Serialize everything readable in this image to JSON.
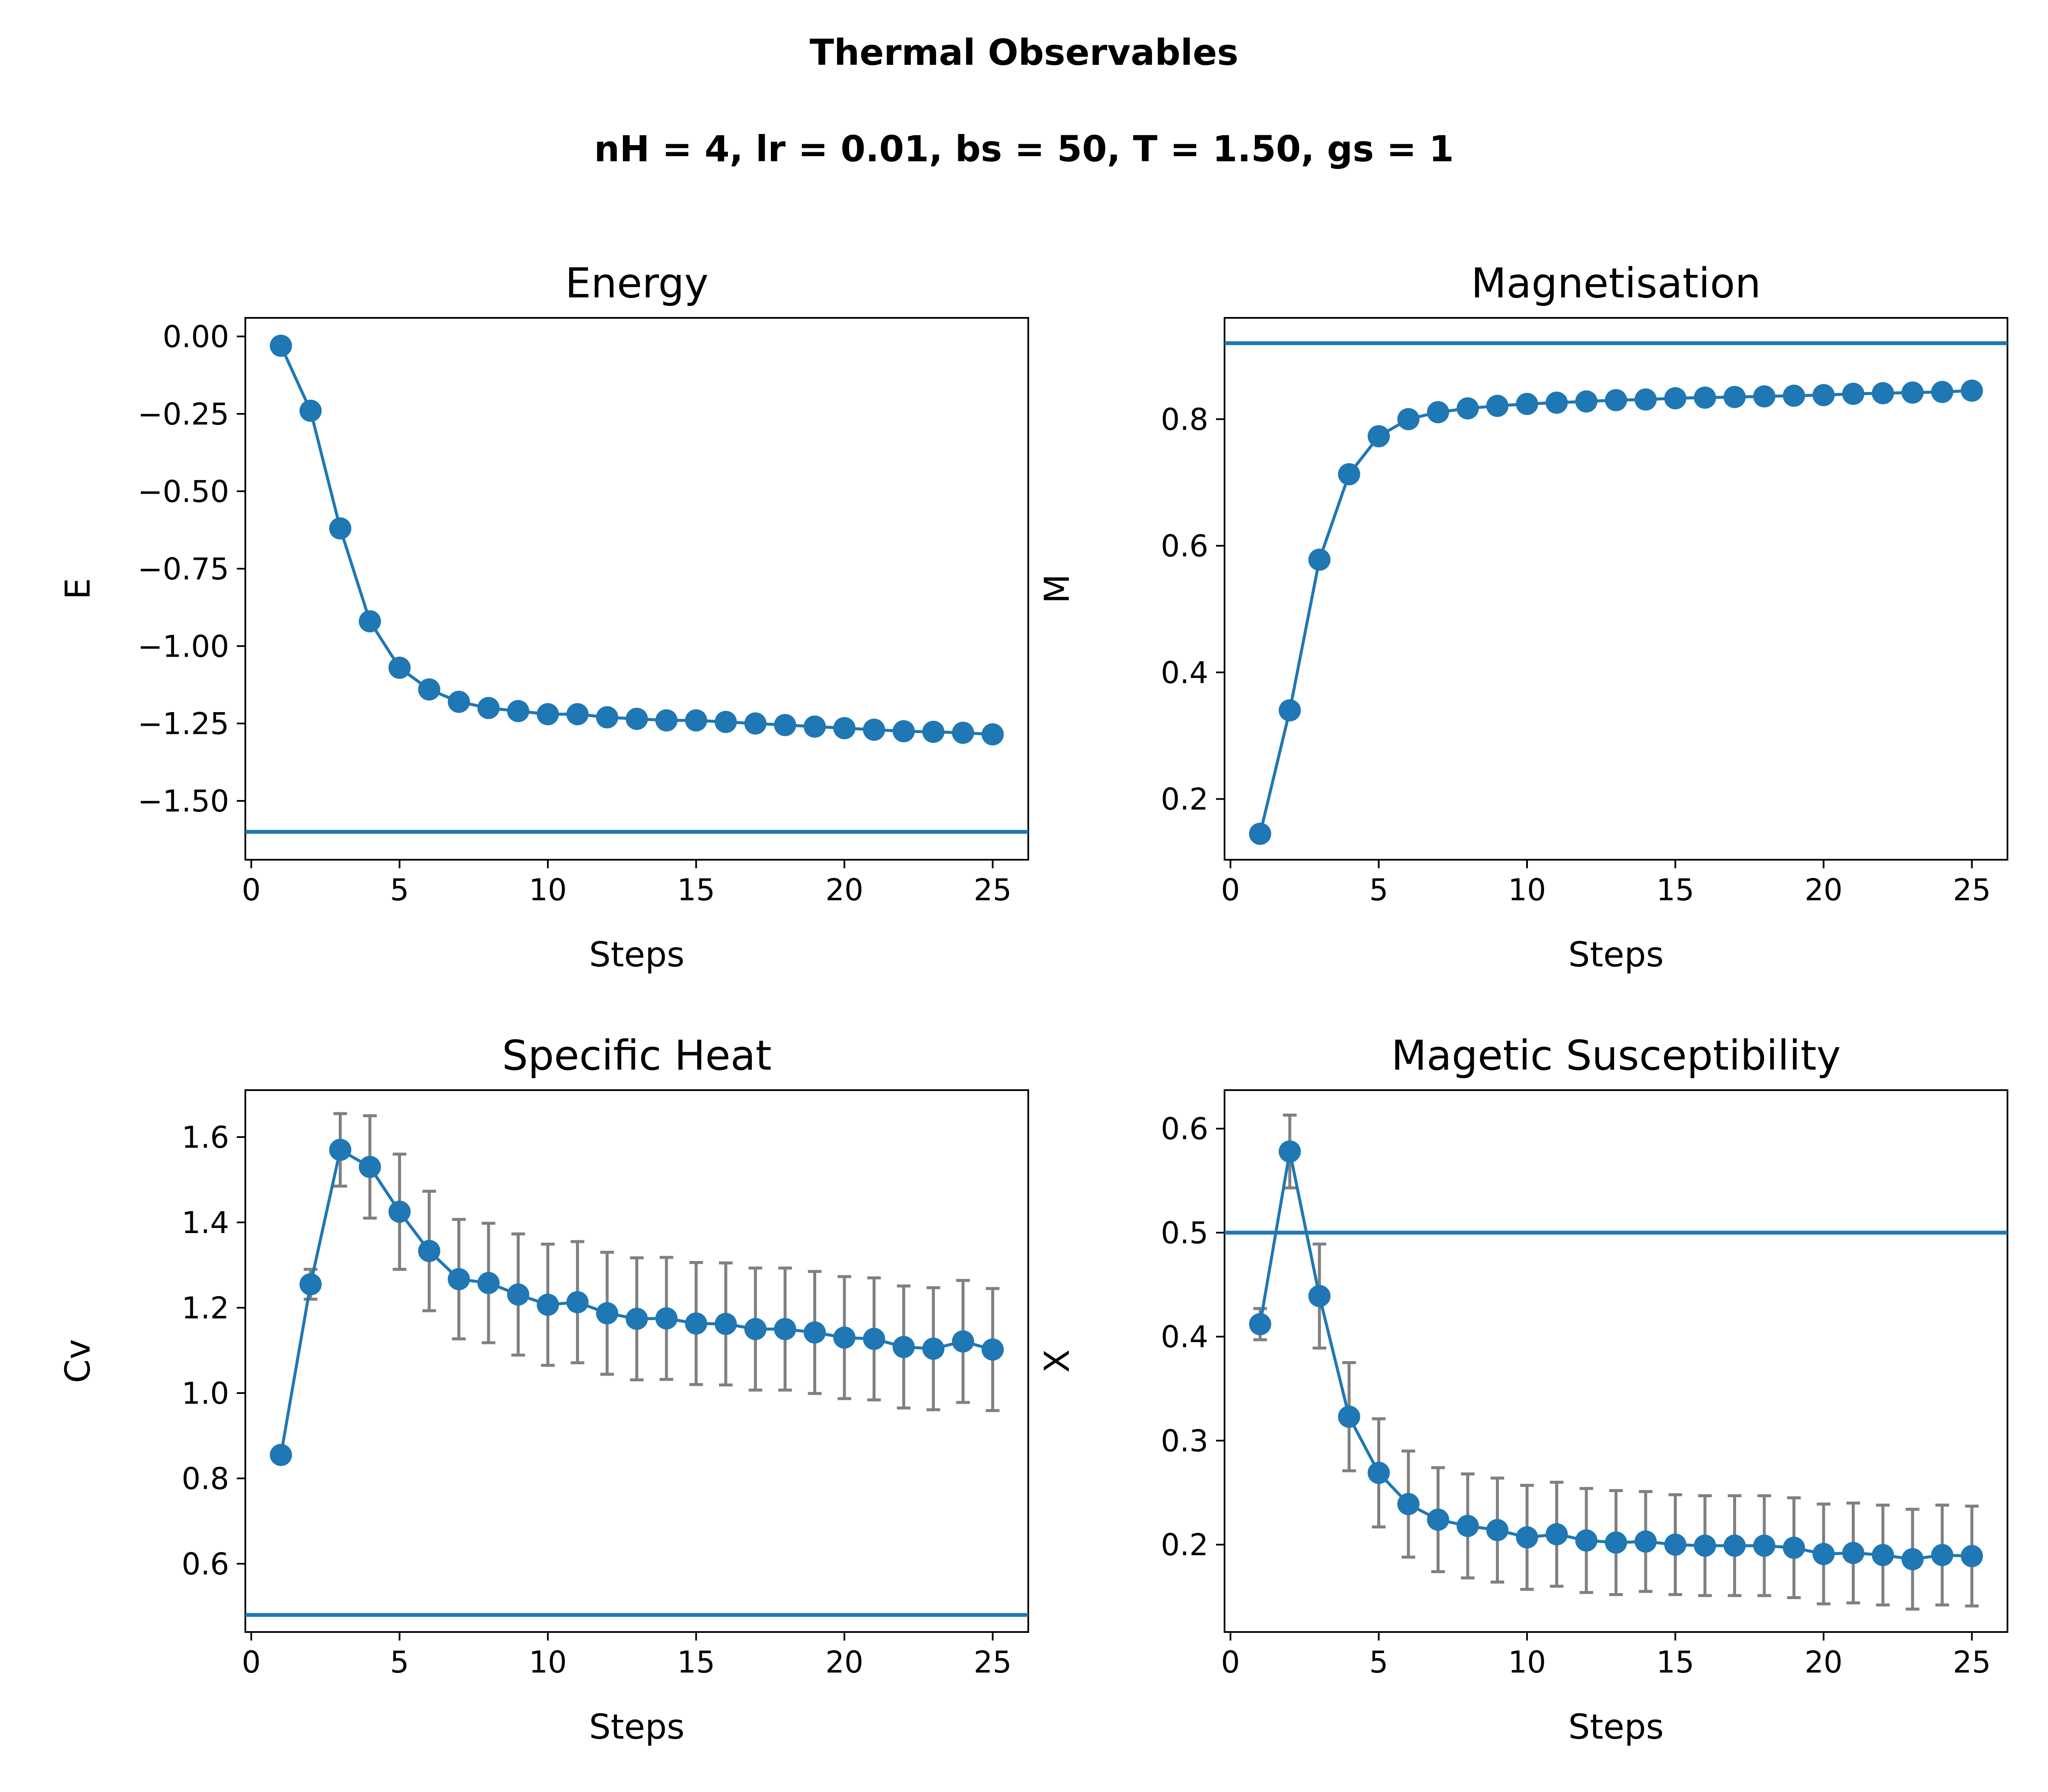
{
  "figure": {
    "title_line1": "Thermal Observables",
    "title_line2": "nH = 4, lr = 0.01, bs = 50,  T = 1.50, gs = 1"
  },
  "colors": {
    "line": "#1f77b4",
    "errorbar": "#808080",
    "axis": "#000000"
  },
  "chart_data": [
    {
      "type": "line",
      "title": "Energy",
      "xlabel": "Steps",
      "ylabel": "E",
      "xlim": [
        -0.2,
        26.2
      ],
      "ylim": [
        -1.69,
        0.06
      ],
      "xticks": [
        0,
        5,
        10,
        15,
        20,
        25
      ],
      "yticks": [
        0.0,
        -0.25,
        -0.5,
        -0.75,
        -1.0,
        -1.25,
        -1.5
      ],
      "ytick_labels": [
        "0.00",
        "−0.25",
        "−0.50",
        "−0.75",
        "−1.00",
        "−1.25",
        "−1.50"
      ],
      "x": [
        1,
        2,
        3,
        4,
        5,
        6,
        7,
        8,
        9,
        10,
        11,
        12,
        13,
        14,
        15,
        16,
        17,
        18,
        19,
        20,
        21,
        22,
        23,
        24,
        25
      ],
      "y": [
        -0.03,
        -0.24,
        -0.62,
        -0.92,
        -1.07,
        -1.14,
        -1.18,
        -1.2,
        -1.21,
        -1.22,
        -1.22,
        -1.23,
        -1.235,
        -1.24,
        -1.24,
        -1.245,
        -1.25,
        -1.255,
        -1.26,
        -1.265,
        -1.27,
        -1.275,
        -1.277,
        -1.28,
        -1.285
      ],
      "hline": -1.6
    },
    {
      "type": "line",
      "title": "Magnetisation",
      "xlabel": "Steps",
      "ylabel": "M",
      "xlim": [
        -0.2,
        26.2
      ],
      "ylim": [
        0.104,
        0.96
      ],
      "xticks": [
        0,
        5,
        10,
        15,
        20,
        25
      ],
      "yticks": [
        0.2,
        0.4,
        0.6,
        0.8
      ],
      "ytick_labels": [
        "0.2",
        "0.4",
        "0.6",
        "0.8"
      ],
      "x": [
        1,
        2,
        3,
        4,
        5,
        6,
        7,
        8,
        9,
        10,
        11,
        12,
        13,
        14,
        15,
        16,
        17,
        18,
        19,
        20,
        21,
        22,
        23,
        24,
        25
      ],
      "y": [
        0.145,
        0.34,
        0.578,
        0.713,
        0.773,
        0.8,
        0.811,
        0.817,
        0.821,
        0.824,
        0.826,
        0.828,
        0.83,
        0.831,
        0.833,
        0.834,
        0.835,
        0.836,
        0.837,
        0.838,
        0.84,
        0.841,
        0.842,
        0.843,
        0.845
      ],
      "hline": 0.92
    },
    {
      "type": "line",
      "title": "Specific Heat",
      "xlabel": "Steps",
      "ylabel": "Cv",
      "xlim": [
        -0.2,
        26.2
      ],
      "ylim": [
        0.44,
        1.71
      ],
      "xticks": [
        0,
        5,
        10,
        15,
        20,
        25
      ],
      "yticks": [
        0.6,
        0.8,
        1.0,
        1.2,
        1.4,
        1.6
      ],
      "ytick_labels": [
        "0.6",
        "0.8",
        "1.0",
        "1.2",
        "1.4",
        "1.6"
      ],
      "x": [
        1,
        2,
        3,
        4,
        5,
        6,
        7,
        8,
        9,
        10,
        11,
        12,
        13,
        14,
        15,
        16,
        17,
        18,
        19,
        20,
        21,
        22,
        23,
        24,
        25
      ],
      "y": [
        0.855,
        1.255,
        1.57,
        1.53,
        1.425,
        1.333,
        1.267,
        1.258,
        1.231,
        1.207,
        1.213,
        1.187,
        1.174,
        1.175,
        1.163,
        1.162,
        1.15,
        1.15,
        1.142,
        1.13,
        1.127,
        1.108,
        1.104,
        1.121,
        1.102
      ],
      "err": [
        0.0,
        0.035,
        0.085,
        0.12,
        0.135,
        0.14,
        0.14,
        0.14,
        0.142,
        0.142,
        0.142,
        0.143,
        0.143,
        0.143,
        0.143,
        0.143,
        0.143,
        0.143,
        0.143,
        0.143,
        0.143,
        0.143,
        0.143,
        0.143,
        0.143
      ],
      "hline": 0.48
    },
    {
      "type": "line",
      "title": "Magetic Susceptibility",
      "xlabel": "Steps",
      "ylabel": "X",
      "xlim": [
        -0.2,
        26.2
      ],
      "ylim": [
        0.116,
        0.637
      ],
      "xticks": [
        0,
        5,
        10,
        15,
        20,
        25
      ],
      "yticks": [
        0.2,
        0.3,
        0.4,
        0.5,
        0.6
      ],
      "ytick_labels": [
        "0.2",
        "0.3",
        "0.4",
        "0.5",
        "0.6"
      ],
      "x": [
        1,
        2,
        3,
        4,
        5,
        6,
        7,
        8,
        9,
        10,
        11,
        12,
        13,
        14,
        15,
        16,
        17,
        18,
        19,
        20,
        21,
        22,
        23,
        24,
        25
      ],
      "y": [
        0.412,
        0.578,
        0.439,
        0.323,
        0.269,
        0.239,
        0.224,
        0.218,
        0.214,
        0.207,
        0.21,
        0.204,
        0.202,
        0.203,
        0.2,
        0.199,
        0.199,
        0.199,
        0.197,
        0.191,
        0.192,
        0.19,
        0.186,
        0.19,
        0.189
      ],
      "err": [
        0.015,
        0.035,
        0.05,
        0.052,
        0.052,
        0.051,
        0.05,
        0.05,
        0.05,
        0.05,
        0.05,
        0.05,
        0.05,
        0.048,
        0.048,
        0.048,
        0.048,
        0.048,
        0.048,
        0.048,
        0.048,
        0.048,
        0.048,
        0.048,
        0.048
      ],
      "hline": 0.5
    }
  ]
}
